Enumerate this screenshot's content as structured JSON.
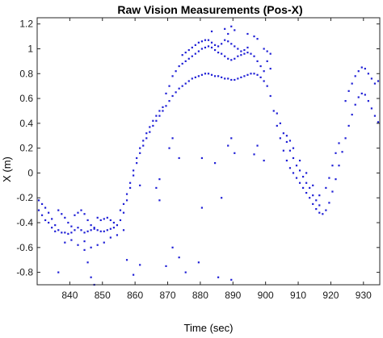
{
  "chart_data": {
    "type": "scatter",
    "title": "Raw Vision Measurements (Pos-X)",
    "xlabel": "Time (sec)",
    "ylabel": "X (m)",
    "xlim": [
      830,
      935
    ],
    "ylim": [
      -0.9,
      1.25
    ],
    "xticks": [
      840,
      850,
      860,
      870,
      880,
      890,
      900,
      910,
      920,
      930
    ],
    "yticks": [
      -0.8,
      -0.6,
      -0.4,
      -0.2,
      0,
      0.2,
      0.4,
      0.6,
      0.8,
      1,
      1.2
    ],
    "ytick_labels": [
      "-0.8",
      "-0.6",
      "-0.4",
      "-0.2",
      "0",
      "0.2",
      "0.4",
      "0.6",
      "0.8",
      "1",
      "1.2"
    ],
    "grid": false,
    "marker_color": "#1f1fd6",
    "series": [
      {
        "points": [
          [
            830.5,
            -0.22
          ],
          [
            831.5,
            -0.25
          ],
          [
            832.5,
            -0.28
          ],
          [
            833.5,
            -0.32
          ],
          [
            834.5,
            -0.37
          ],
          [
            835.5,
            -0.42
          ],
          [
            836.5,
            -0.46
          ],
          [
            837.5,
            -0.48
          ],
          [
            838.5,
            -0.48
          ],
          [
            839.5,
            -0.49
          ],
          [
            840.5,
            -0.48
          ],
          [
            841.5,
            -0.46
          ],
          [
            842.5,
            -0.44
          ],
          [
            843.5,
            -0.46
          ],
          [
            844.5,
            -0.48
          ],
          [
            845.5,
            -0.47
          ],
          [
            846.5,
            -0.46
          ],
          [
            847.5,
            -0.45
          ],
          [
            848.5,
            -0.46
          ],
          [
            849.5,
            -0.47
          ],
          [
            850.5,
            -0.47
          ],
          [
            851.5,
            -0.46
          ],
          [
            852.5,
            -0.45
          ],
          [
            853.5,
            -0.44
          ],
          [
            854.5,
            -0.42
          ],
          [
            855.5,
            -0.38
          ],
          [
            856.5,
            -0.32
          ],
          [
            857.5,
            -0.22
          ],
          [
            858.5,
            -0.12
          ],
          [
            859.5,
            -0.02
          ],
          [
            860.5,
            0.08
          ],
          [
            861.5,
            0.16
          ],
          [
            862.5,
            0.22
          ],
          [
            863.5,
            0.28
          ],
          [
            864.5,
            0.33
          ],
          [
            865.5,
            0.38
          ],
          [
            866.5,
            0.42
          ],
          [
            867.5,
            0.46
          ],
          [
            868.5,
            0.5
          ],
          [
            869.5,
            0.54
          ],
          [
            870.5,
            0.58
          ],
          [
            871.5,
            0.62
          ],
          [
            872.5,
            0.65
          ],
          [
            873.5,
            0.68
          ],
          [
            874.5,
            0.7
          ],
          [
            875.5,
            0.72
          ],
          [
            876.5,
            0.74
          ],
          [
            877.5,
            0.76
          ],
          [
            878.5,
            0.77
          ],
          [
            879.5,
            0.78
          ],
          [
            880.5,
            0.79
          ],
          [
            881.5,
            0.8
          ],
          [
            882.5,
            0.8
          ],
          [
            883.5,
            0.79
          ],
          [
            884.5,
            0.78
          ],
          [
            885.5,
            0.78
          ],
          [
            886.5,
            0.77
          ],
          [
            887.5,
            0.76
          ],
          [
            888.5,
            0.76
          ],
          [
            889.5,
            0.75
          ],
          [
            890.5,
            0.75
          ],
          [
            891.5,
            0.76
          ],
          [
            892.5,
            0.77
          ],
          [
            893.5,
            0.78
          ],
          [
            894.5,
            0.79
          ],
          [
            895.5,
            0.8
          ],
          [
            896.5,
            0.8
          ],
          [
            897.5,
            0.79
          ],
          [
            898.5,
            0.77
          ],
          [
            899.5,
            0.74
          ],
          [
            900.5,
            0.7
          ],
          [
            901.5,
            0.62
          ],
          [
            902.5,
            0.5
          ],
          [
            903.5,
            0.38
          ],
          [
            904.5,
            0.28
          ],
          [
            905.5,
            0.18
          ],
          [
            906.5,
            0.1
          ],
          [
            907.5,
            0.04
          ],
          [
            908.5,
            0.0
          ],
          [
            909.5,
            -0.04
          ],
          [
            910.5,
            -0.08
          ],
          [
            911.5,
            -0.12
          ],
          [
            912.5,
            -0.16
          ],
          [
            913.5,
            -0.2
          ],
          [
            914.5,
            -0.25
          ],
          [
            915.5,
            -0.29
          ],
          [
            916.5,
            -0.32
          ],
          [
            917.5,
            -0.33
          ],
          [
            918.5,
            -0.3
          ],
          [
            919.5,
            -0.24
          ],
          [
            920.5,
            -0.15
          ],
          [
            921.5,
            -0.05
          ],
          [
            922.5,
            0.06
          ],
          [
            923.5,
            0.17
          ],
          [
            924.5,
            0.28
          ],
          [
            925.5,
            0.38
          ],
          [
            926.5,
            0.47
          ],
          [
            927.5,
            0.55
          ],
          [
            928.5,
            0.61
          ],
          [
            929.5,
            0.64
          ],
          [
            930.5,
            0.63
          ],
          [
            931.5,
            0.58
          ],
          [
            932.5,
            0.52
          ],
          [
            933.5,
            0.46
          ],
          [
            934.5,
            0.41
          ],
          [
            830.5,
            -0.3
          ],
          [
            831.5,
            -0.34
          ],
          [
            832.5,
            -0.38
          ],
          [
            833.5,
            -0.4
          ],
          [
            834.5,
            -0.44
          ],
          [
            835.5,
            -0.47
          ],
          [
            836.5,
            -0.3
          ],
          [
            837.5,
            -0.33
          ],
          [
            838.5,
            -0.36
          ],
          [
            839.5,
            -0.4
          ],
          [
            840.5,
            -0.43
          ],
          [
            841.5,
            -0.34
          ],
          [
            842.5,
            -0.32
          ],
          [
            843.5,
            -0.3
          ],
          [
            844.5,
            -0.33
          ],
          [
            845.5,
            -0.38
          ],
          [
            846.5,
            -0.42
          ],
          [
            847.5,
            -0.44
          ],
          [
            848.5,
            -0.36
          ],
          [
            849.5,
            -0.38
          ],
          [
            850.5,
            -0.37
          ],
          [
            851.5,
            -0.36
          ],
          [
            852.5,
            -0.38
          ],
          [
            853.5,
            -0.4
          ],
          [
            855.5,
            -0.3
          ],
          [
            856.5,
            -0.25
          ],
          [
            857.5,
            -0.17
          ],
          [
            858.5,
            -0.08
          ],
          [
            859.5,
            0.02
          ],
          [
            860.5,
            0.12
          ],
          [
            861.5,
            0.2
          ],
          [
            862.5,
            0.26
          ],
          [
            863.5,
            0.32
          ],
          [
            864.5,
            0.37
          ],
          [
            865.5,
            0.42
          ],
          [
            866.5,
            0.46
          ],
          [
            867.5,
            0.5
          ],
          [
            868.5,
            0.53
          ],
          [
            869.5,
            0.64
          ],
          [
            870.5,
            0.7
          ],
          [
            871.5,
            0.78
          ],
          [
            872.5,
            0.82
          ],
          [
            873.5,
            0.86
          ],
          [
            874.5,
            0.88
          ],
          [
            875.5,
            0.9
          ],
          [
            876.5,
            0.92
          ],
          [
            877.5,
            0.94
          ],
          [
            878.5,
            0.96
          ],
          [
            879.5,
            0.98
          ],
          [
            880.5,
            1.0
          ],
          [
            881.5,
            1.01
          ],
          [
            882.5,
            1.02
          ],
          [
            883.5,
            1.01
          ],
          [
            884.5,
            0.99
          ],
          [
            885.5,
            0.97
          ],
          [
            886.5,
            0.96
          ],
          [
            887.5,
            0.94
          ],
          [
            888.5,
            0.92
          ],
          [
            889.5,
            0.91
          ],
          [
            890.5,
            0.92
          ],
          [
            891.5,
            0.94
          ],
          [
            892.5,
            0.95
          ],
          [
            893.5,
            0.96
          ],
          [
            894.5,
            0.97
          ],
          [
            895.5,
            0.96
          ],
          [
            896.5,
            0.94
          ],
          [
            897.5,
            0.9
          ],
          [
            898.5,
            0.86
          ],
          [
            899.5,
            0.82
          ],
          [
            874.5,
            0.95
          ],
          [
            875.5,
            0.97
          ],
          [
            876.5,
            0.99
          ],
          [
            877.5,
            1.01
          ],
          [
            878.5,
            1.03
          ],
          [
            879.5,
            1.05
          ],
          [
            880.5,
            1.06
          ],
          [
            881.5,
            1.07
          ],
          [
            882.5,
            1.07
          ],
          [
            883.5,
            1.05
          ],
          [
            884.5,
            1.03
          ],
          [
            885.5,
            1.02
          ],
          [
            886.5,
            1.04
          ],
          [
            887.5,
            1.07
          ],
          [
            888.5,
            1.06
          ],
          [
            889.5,
            1.04
          ],
          [
            890.5,
            1.02
          ],
          [
            891.5,
            1.0
          ],
          [
            892.5,
            0.98
          ],
          [
            893.5,
            0.99
          ],
          [
            894.5,
            1.01
          ],
          [
            883.5,
            1.14
          ],
          [
            887.5,
            1.16
          ],
          [
            889.5,
            1.18
          ],
          [
            890.5,
            1.15
          ],
          [
            888.5,
            1.12
          ],
          [
            896.5,
            1.1
          ],
          [
            897.5,
            1.08
          ],
          [
            894.5,
            1.12
          ],
          [
            899.5,
            1.0
          ],
          [
            900.5,
            0.98
          ],
          [
            901.5,
            0.96
          ],
          [
            900.5,
            0.9
          ],
          [
            901.5,
            0.84
          ],
          [
            903.5,
            0.48
          ],
          [
            904.5,
            0.4
          ],
          [
            905.5,
            0.32
          ],
          [
            906.5,
            0.25
          ],
          [
            907.5,
            0.18
          ],
          [
            908.5,
            0.12
          ],
          [
            909.5,
            0.06
          ],
          [
            910.5,
            0.02
          ],
          [
            911.5,
            -0.03
          ],
          [
            912.5,
            -0.08
          ],
          [
            913.5,
            -0.12
          ],
          [
            914.5,
            -0.18
          ],
          [
            915.5,
            -0.22
          ],
          [
            916.5,
            -0.26
          ],
          [
            906.5,
            0.3
          ],
          [
            907.5,
            0.26
          ],
          [
            908.5,
            0.2
          ],
          [
            910.5,
            0.1
          ],
          [
            912.5,
            0.0
          ],
          [
            914.5,
            -0.1
          ],
          [
            916.5,
            -0.18
          ],
          [
            918.5,
            -0.12
          ],
          [
            919.5,
            -0.04
          ],
          [
            920.5,
            0.06
          ],
          [
            921.5,
            0.16
          ],
          [
            922.5,
            0.24
          ],
          [
            926.5,
            0.72
          ],
          [
            927.5,
            0.78
          ],
          [
            928.5,
            0.82
          ],
          [
            929.5,
            0.85
          ],
          [
            930.5,
            0.84
          ],
          [
            931.5,
            0.8
          ],
          [
            932.5,
            0.76
          ],
          [
            933.5,
            0.72
          ],
          [
            934.5,
            0.74
          ],
          [
            925.5,
            0.66
          ],
          [
            924.5,
            0.58
          ],
          [
            838.5,
            -0.56
          ],
          [
            840.5,
            -0.54
          ],
          [
            842.5,
            -0.58
          ],
          [
            844.5,
            -0.55
          ],
          [
            846.5,
            -0.6
          ],
          [
            848.5,
            -0.58
          ],
          [
            850.5,
            -0.56
          ],
          [
            852.5,
            -0.52
          ],
          [
            854.5,
            -0.5
          ],
          [
            856.5,
            -0.46
          ],
          [
            836.5,
            -0.8
          ],
          [
            844.5,
            -0.62
          ],
          [
            845.5,
            -0.72
          ],
          [
            846.5,
            -0.84
          ],
          [
            847.5,
            -0.9
          ],
          [
            857.5,
            -0.7
          ],
          [
            859.5,
            -0.82
          ],
          [
            861.5,
            -0.74
          ],
          [
            869.5,
            -0.75
          ],
          [
            871.5,
            -0.6
          ],
          [
            873.5,
            -0.68
          ],
          [
            875.5,
            -0.8
          ],
          [
            879.5,
            -0.72
          ],
          [
            885.5,
            -0.84
          ],
          [
            889.5,
            -0.86
          ],
          [
            861.5,
            -0.1
          ],
          [
            866.5,
            -0.12
          ],
          [
            867.5,
            -0.05
          ],
          [
            870.5,
            0.2
          ],
          [
            871.5,
            0.28
          ],
          [
            873.5,
            0.12
          ],
          [
            880.5,
            0.12
          ],
          [
            884.5,
            0.08
          ],
          [
            888.5,
            0.22
          ],
          [
            890.5,
            0.16
          ],
          [
            889.5,
            0.28
          ],
          [
            896.5,
            0.15
          ],
          [
            897.5,
            0.22
          ],
          [
            899.5,
            0.1
          ],
          [
            867.5,
            -0.22
          ],
          [
            880.5,
            -0.28
          ],
          [
            886.5,
            -0.2
          ]
        ]
      }
    ]
  }
}
